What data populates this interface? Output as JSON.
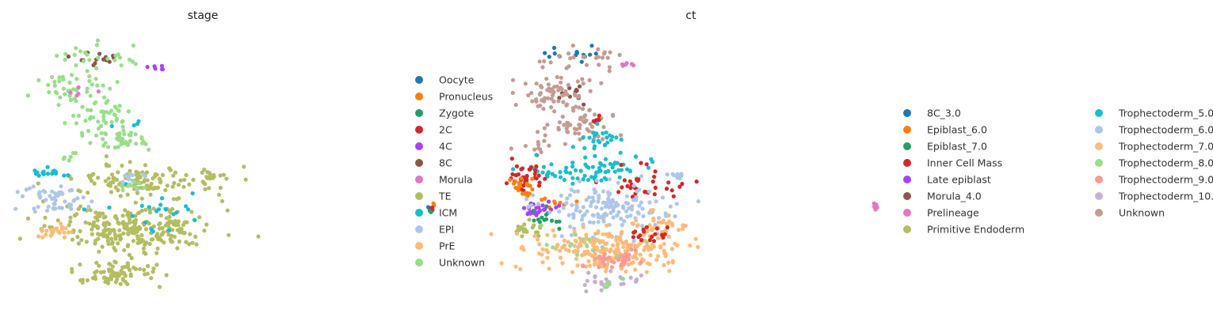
{
  "chart_data": [
    {
      "type": "scatter",
      "title": "stage",
      "xlabel": "",
      "ylabel": "",
      "grid": false,
      "legend_position": "right",
      "legend": [
        {
          "label": "Oocyte",
          "color": "#1f77b4"
        },
        {
          "label": "Pronucleus",
          "color": "#ff7f0e"
        },
        {
          "label": "Zygote",
          "color": "#279e68"
        },
        {
          "label": "2C",
          "color": "#d62728"
        },
        {
          "label": "4C",
          "color": "#aa40fc"
        },
        {
          "label": "8C",
          "color": "#8c564b"
        },
        {
          "label": "Morula",
          "color": "#e377c2"
        },
        {
          "label": "TE",
          "color": "#b5bd61"
        },
        {
          "label": "ICM",
          "color": "#17becf"
        },
        {
          "label": "EPI",
          "color": "#aec7e8"
        },
        {
          "label": "PrE",
          "color": "#ffbb78"
        },
        {
          "label": "Unknown",
          "color": "#98df8a"
        }
      ],
      "clusters": [
        {
          "category": "8C",
          "x": 0.14,
          "y": 0.1,
          "spread": [
            0.05,
            0.03
          ],
          "n": 14
        },
        {
          "category": "Unknown",
          "x": 0.15,
          "y": 0.09,
          "spread": [
            0.08,
            0.04
          ],
          "n": 25
        },
        {
          "category": "4C",
          "x": 0.24,
          "y": 0.13,
          "spread": [
            0.015,
            0.01
          ],
          "n": 6
        },
        {
          "category": "Unknown",
          "x": 0.09,
          "y": 0.2,
          "spread": [
            0.07,
            0.05
          ],
          "n": 40
        },
        {
          "category": "Unknown",
          "x": 0.14,
          "y": 0.3,
          "spread": [
            0.05,
            0.06
          ],
          "n": 45
        },
        {
          "category": "Unknown",
          "x": 0.18,
          "y": 0.4,
          "spread": [
            0.06,
            0.04
          ],
          "n": 40
        },
        {
          "category": "Morula",
          "x": 0.1,
          "y": 0.22,
          "spread": [
            0.04,
            0.03
          ],
          "n": 5
        },
        {
          "category": "ICM",
          "x": 0.2,
          "y": 0.34,
          "spread": [
            0.02,
            0.01
          ],
          "n": 4
        },
        {
          "category": "TE",
          "x": 0.22,
          "y": 0.55,
          "spread": [
            0.12,
            0.05
          ],
          "n": 120
        },
        {
          "category": "TE",
          "x": 0.2,
          "y": 0.72,
          "spread": [
            0.13,
            0.07
          ],
          "n": 260
        },
        {
          "category": "TE",
          "x": 0.17,
          "y": 0.88,
          "spread": [
            0.07,
            0.05
          ],
          "n": 80
        },
        {
          "category": "TE",
          "x": 0.34,
          "y": 0.53,
          "spread": [
            0.02,
            0.015
          ],
          "n": 12
        },
        {
          "category": "ICM",
          "x": 0.05,
          "y": 0.52,
          "spread": [
            0.04,
            0.015
          ],
          "n": 18
        },
        {
          "category": "ICM",
          "x": 0.24,
          "y": 0.64,
          "spread": [
            0.08,
            0.09
          ],
          "n": 22
        },
        {
          "category": "EPI",
          "x": 0.06,
          "y": 0.62,
          "spread": [
            0.05,
            0.05
          ],
          "n": 55
        },
        {
          "category": "EPI",
          "x": 0.19,
          "y": 0.54,
          "spread": [
            0.05,
            0.03
          ],
          "n": 12
        },
        {
          "category": "PrE",
          "x": 0.05,
          "y": 0.73,
          "spread": [
            0.03,
            0.025
          ],
          "n": 22
        },
        {
          "category": "Unknown",
          "x": 0.08,
          "y": 0.46,
          "spread": [
            0.02,
            0.015
          ],
          "n": 6
        },
        {
          "category": "Unknown",
          "x": 0.2,
          "y": 0.56,
          "spread": [
            0.02,
            0.02
          ],
          "n": 8
        },
        {
          "category": "Oocyte",
          "x": 0.735,
          "y": 0.65,
          "spread": [
            0.004,
            0.008
          ],
          "n": 3
        },
        {
          "category": "Pronucleus",
          "x": 0.74,
          "y": 0.635,
          "spread": [
            0.004,
            0.006
          ],
          "n": 3
        },
        {
          "category": "Zygote",
          "x": 0.735,
          "y": 0.66,
          "spread": [
            0.003,
            0.004
          ],
          "n": 2
        },
        {
          "category": "2C",
          "x": 0.74,
          "y": 0.645,
          "spread": [
            0.003,
            0.004
          ],
          "n": 2
        }
      ]
    },
    {
      "type": "scatter",
      "title": "ct",
      "xlabel": "",
      "ylabel": "",
      "grid": false,
      "legend_position": "right",
      "legend_columns": 2,
      "legend": [
        {
          "label": "8C_3.0",
          "color": "#1f77b4"
        },
        {
          "label": "Epiblast_6.0",
          "color": "#ff7f0e"
        },
        {
          "label": "Epiblast_7.0",
          "color": "#279e68"
        },
        {
          "label": "Inner Cell Mass",
          "color": "#d62728"
        },
        {
          "label": "Late epiblast",
          "color": "#aa40fc"
        },
        {
          "label": "Morula_4.0",
          "color": "#8c564b"
        },
        {
          "label": "Prelineage",
          "color": "#e377c2"
        },
        {
          "label": "Primitive Endoderm",
          "color": "#b5bd61"
        },
        {
          "label": "Trophectoderm_5.0",
          "color": "#17becf"
        },
        {
          "label": "Trophectoderm_6.0",
          "color": "#aec7e8"
        },
        {
          "label": "Trophectoderm_7.0",
          "color": "#ffbb78"
        },
        {
          "label": "Trophectoderm_8.0",
          "color": "#98df8a"
        },
        {
          "label": "Trophectoderm_9.0",
          "color": "#ff9896"
        },
        {
          "label": "Trophectoderm_10.0",
          "color": "#c5b0d5"
        },
        {
          "label": "Unknown",
          "color": "#c49c94"
        }
      ],
      "clusters": [
        {
          "category": "8C_3.0",
          "x": 0.12,
          "y": 0.08,
          "spread": [
            0.05,
            0.04
          ],
          "n": 14
        },
        {
          "category": "Unknown",
          "x": 0.14,
          "y": 0.1,
          "spread": [
            0.07,
            0.04
          ],
          "n": 25
        },
        {
          "category": "Morula_4.0",
          "x": 0.12,
          "y": 0.22,
          "spread": [
            0.05,
            0.04
          ],
          "n": 12
        },
        {
          "category": "Prelineage",
          "x": 0.23,
          "y": 0.12,
          "spread": [
            0.015,
            0.01
          ],
          "n": 6
        },
        {
          "category": "Unknown",
          "x": 0.09,
          "y": 0.22,
          "spread": [
            0.07,
            0.06
          ],
          "n": 65
        },
        {
          "category": "Unknown",
          "x": 0.13,
          "y": 0.34,
          "spread": [
            0.06,
            0.06
          ],
          "n": 55
        },
        {
          "category": "Unknown",
          "x": 0.05,
          "y": 0.42,
          "spread": [
            0.03,
            0.04
          ],
          "n": 12
        },
        {
          "category": "Inner Cell Mass",
          "x": 0.17,
          "y": 0.33,
          "spread": [
            0.02,
            0.02
          ],
          "n": 6
        },
        {
          "category": "Trophectoderm_5.0",
          "x": 0.18,
          "y": 0.39,
          "spread": [
            0.04,
            0.03
          ],
          "n": 22
        },
        {
          "category": "Trophectoderm_5.0",
          "x": 0.19,
          "y": 0.5,
          "spread": [
            0.09,
            0.05
          ],
          "n": 60
        },
        {
          "category": "Trophectoderm_5.0",
          "x": 0.07,
          "y": 0.52,
          "spread": [
            0.04,
            0.02
          ],
          "n": 20
        },
        {
          "category": "Inner Cell Mass",
          "x": 0.03,
          "y": 0.53,
          "spread": [
            0.04,
            0.04
          ],
          "n": 35
        },
        {
          "category": "Inner Cell Mass",
          "x": 0.26,
          "y": 0.56,
          "spread": [
            0.07,
            0.06
          ],
          "n": 35
        },
        {
          "category": "Epiblast_6.0",
          "x": 0.02,
          "y": 0.57,
          "spread": [
            0.02,
            0.04
          ],
          "n": 22
        },
        {
          "category": "Epiblast_6.0",
          "x": 0.1,
          "y": 0.62,
          "spread": [
            0.04,
            0.02
          ],
          "n": 8
        },
        {
          "category": "Late epiblast",
          "x": 0.05,
          "y": 0.65,
          "spread": [
            0.03,
            0.03
          ],
          "n": 22
        },
        {
          "category": "Epiblast_7.0",
          "x": 0.07,
          "y": 0.68,
          "spread": [
            0.04,
            0.03
          ],
          "n": 14
        },
        {
          "category": "Primitive Endoderm",
          "x": 0.03,
          "y": 0.73,
          "spread": [
            0.03,
            0.03
          ],
          "n": 22
        },
        {
          "category": "Trophectoderm_6.0",
          "x": 0.19,
          "y": 0.64,
          "spread": [
            0.11,
            0.08
          ],
          "n": 150
        },
        {
          "category": "Trophectoderm_6.0",
          "x": 0.33,
          "y": 0.53,
          "spread": [
            0.015,
            0.01
          ],
          "n": 10
        },
        {
          "category": "Trophectoderm_7.0",
          "x": 0.18,
          "y": 0.8,
          "spread": [
            0.12,
            0.07
          ],
          "n": 230
        },
        {
          "category": "Trophectoderm_7.0",
          "x": 0.29,
          "y": 0.72,
          "spread": [
            0.05,
            0.05
          ],
          "n": 40
        },
        {
          "category": "Inner Cell Mass",
          "x": 0.28,
          "y": 0.74,
          "spread": [
            0.04,
            0.04
          ],
          "n": 18
        },
        {
          "category": "Trophectoderm_9.0",
          "x": 0.2,
          "y": 0.84,
          "spread": [
            0.06,
            0.04
          ],
          "n": 35
        },
        {
          "category": "Trophectoderm_10.0",
          "x": 0.19,
          "y": 0.92,
          "spread": [
            0.04,
            0.03
          ],
          "n": 22
        },
        {
          "category": "Trophectoderm_10.0",
          "x": 0.25,
          "y": 0.9,
          "spread": [
            0.02,
            0.02
          ],
          "n": 6
        },
        {
          "category": "Trophectoderm_8.0",
          "x": 0.15,
          "y": 0.78,
          "spread": [
            0.1,
            0.06
          ],
          "n": 14
        },
        {
          "category": "Trophectoderm_8.0",
          "x": 0.19,
          "y": 0.93,
          "spread": [
            0.02,
            0.02
          ],
          "n": 5
        },
        {
          "category": "Prelineage",
          "x": 0.72,
          "y": 0.64,
          "spread": [
            0.004,
            0.012
          ],
          "n": 10
        }
      ]
    }
  ]
}
